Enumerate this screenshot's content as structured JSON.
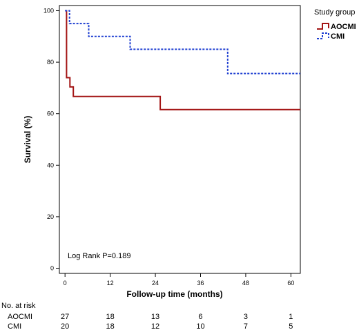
{
  "chart_data": {
    "type": "line",
    "step": true,
    "xlabel": "Follow-up time (months)",
    "ylabel": "Survival (%)",
    "xlim": [
      -1.5,
      62.5
    ],
    "ylim": [
      -2,
      102
    ],
    "xticks": [
      0,
      12,
      24,
      36,
      48,
      60
    ],
    "yticks": [
      0,
      20,
      40,
      60,
      80,
      100
    ],
    "grid": false,
    "annotation": "Log Rank P=0.189",
    "legend": {
      "title": "Study group",
      "position": "top-right-outside"
    },
    "series": [
      {
        "name": "AOCMI",
        "color": "#a31515",
        "dash": "solid",
        "x": [
          0,
          0.4,
          1.3,
          2.2,
          25.3,
          62.5
        ],
        "y": [
          100,
          74,
          70.4,
          66.7,
          61.6,
          61.6
        ]
      },
      {
        "name": "CMI",
        "color": "#1f3fd1",
        "dash": "dotted",
        "x": [
          0,
          1.2,
          6.3,
          17.3,
          43.2,
          62.5
        ],
        "y": [
          100,
          95,
          90,
          85,
          75.6,
          75.6
        ]
      }
    ],
    "risk_table": {
      "title": "No. at risk",
      "rows": [
        {
          "label": "AOCMI",
          "values": [
            "27",
            "18",
            "13",
            "6",
            "3",
            "1"
          ]
        },
        {
          "label": "CMI",
          "values": [
            "20",
            "18",
            "12",
            "10",
            "7",
            "5"
          ]
        }
      ]
    }
  }
}
